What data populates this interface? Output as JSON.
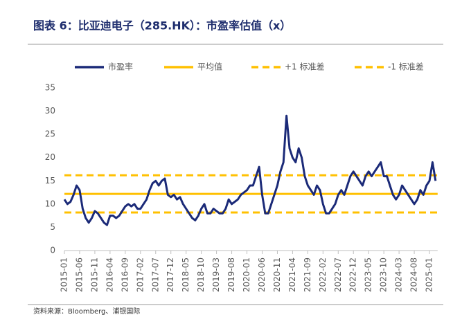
{
  "chart_data": {
    "type": "line",
    "title": "图表 6：比亚迪电子（285.HK）：市盈率估值（x）",
    "source": "资料来源：Bloomberg、浦银国际",
    "x": [
      "2015-01",
      "2015-02",
      "2015-03",
      "2015-04",
      "2015-05",
      "2015-06",
      "2015-07",
      "2015-08",
      "2015-09",
      "2015-10",
      "2015-11",
      "2015-12",
      "2016-01",
      "2016-02",
      "2016-03",
      "2016-04",
      "2016-05",
      "2016-06",
      "2016-07",
      "2016-08",
      "2016-09",
      "2016-10",
      "2016-11",
      "2016-12",
      "2017-01",
      "2017-02",
      "2017-03",
      "2017-04",
      "2017-05",
      "2017-06",
      "2017-07",
      "2017-08",
      "2017-09",
      "2017-10",
      "2017-11",
      "2017-12",
      "2018-01",
      "2018-02",
      "2018-03",
      "2018-04",
      "2018-05",
      "2018-06",
      "2018-07",
      "2018-08",
      "2018-09",
      "2018-10",
      "2018-11",
      "2018-12",
      "2019-01",
      "2019-02",
      "2019-03",
      "2019-04",
      "2019-05",
      "2019-06",
      "2019-07",
      "2019-08",
      "2019-09",
      "2019-10",
      "2019-11",
      "2019-12",
      "2020-01",
      "2020-02",
      "2020-03",
      "2020-04",
      "2020-05",
      "2020-06",
      "2020-07",
      "2020-08",
      "2020-09",
      "2020-10",
      "2020-11",
      "2020-12",
      "2021-01",
      "2021-02",
      "2021-03",
      "2021-04",
      "2021-05",
      "2021-06",
      "2021-07",
      "2021-08",
      "2021-09",
      "2021-10",
      "2021-11",
      "2021-12",
      "2022-01",
      "2022-02",
      "2022-03",
      "2022-04",
      "2022-05",
      "2022-06",
      "2022-07",
      "2022-08",
      "2022-09",
      "2022-10",
      "2022-11",
      "2022-12",
      "2023-01",
      "2023-02",
      "2023-03",
      "2023-04",
      "2023-05",
      "2023-06",
      "2023-07",
      "2023-08",
      "2023-09",
      "2023-10",
      "2023-11",
      "2023-12",
      "2024-01",
      "2024-02",
      "2024-03",
      "2024-04",
      "2024-05",
      "2024-06",
      "2024-07",
      "2024-08",
      "2024-09",
      "2024-10",
      "2024-11",
      "2024-12",
      "2025-01",
      "2025-02",
      "2025-03"
    ],
    "xticks": [
      "2015-01",
      "2015-06",
      "2015-11",
      "2016-04",
      "2016-09",
      "2017-02",
      "2017-07",
      "2017-12",
      "2018-05",
      "2018-10",
      "2019-03",
      "2019-08",
      "2020-01",
      "2020-06",
      "2020-11",
      "2021-04",
      "2021-09",
      "2022-02",
      "2022-07",
      "2022-12",
      "2023-05",
      "2023-10",
      "2024-03",
      "2024-08",
      "2025-01"
    ],
    "series": [
      {
        "name": "市盈率",
        "color": "#1b2a78",
        "values": [
          11,
          10,
          10.5,
          12,
          14,
          13,
          9,
          7,
          6,
          7,
          8.5,
          8,
          7,
          6,
          5.5,
          7.5,
          7.5,
          7,
          7.5,
          8.5,
          9.5,
          10,
          9.5,
          10,
          9,
          9,
          10,
          11,
          13,
          14.5,
          15,
          14,
          15,
          15.5,
          12,
          11.5,
          12,
          11,
          11.5,
          10,
          9,
          8,
          7,
          6.5,
          7.5,
          9,
          10,
          8,
          8,
          9,
          8.5,
          8,
          8,
          9,
          11,
          10,
          10.5,
          11,
          12,
          12.5,
          13,
          14,
          14,
          16,
          18,
          12,
          8,
          8,
          10,
          12,
          14,
          17,
          19,
          29,
          22,
          20,
          19,
          22,
          20,
          16,
          14,
          13,
          12,
          14,
          13,
          10,
          8,
          8,
          9,
          10,
          12,
          13,
          12,
          14,
          16,
          17,
          16,
          15,
          14,
          16,
          17,
          16,
          17,
          18,
          19,
          16,
          16,
          14,
          12,
          11,
          12,
          14,
          13,
          12,
          11,
          10,
          11,
          13,
          12,
          14,
          15,
          19,
          15
        ]
      }
    ],
    "reference_lines": [
      {
        "name": "平均值",
        "value": 12.2,
        "color": "#ffc000",
        "dashed": false
      },
      {
        "name": "+1 标准差",
        "value": 16.2,
        "color": "#ffc000",
        "dashed": true
      },
      {
        "name": "-1 标准差",
        "value": 8.2,
        "color": "#ffc000",
        "dashed": true
      }
    ],
    "ylim": [
      0,
      35
    ],
    "yticks": [
      0,
      5,
      10,
      15,
      20,
      25,
      30,
      35
    ]
  }
}
